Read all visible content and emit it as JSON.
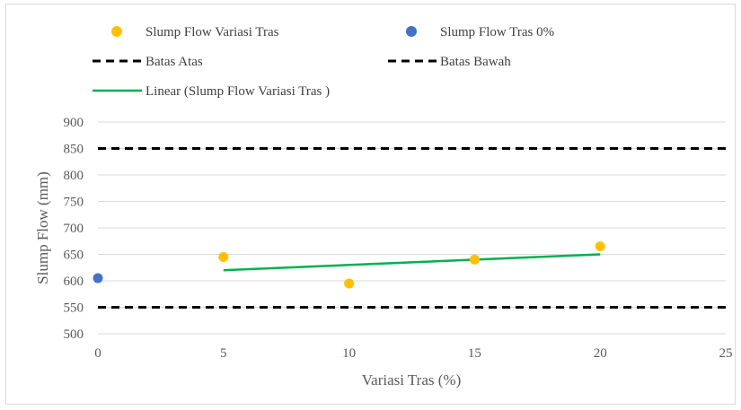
{
  "chart_data": {
    "type": "scatter",
    "title": "",
    "xlabel": "Variasi Tras (%)",
    "ylabel": "Slump Flow (mm)",
    "xlim": [
      0,
      25
    ],
    "ylim": [
      500,
      900
    ],
    "xticks": [
      0,
      5,
      10,
      15,
      20,
      25
    ],
    "yticks": [
      500,
      550,
      600,
      650,
      700,
      750,
      800,
      850,
      900
    ],
    "grid": "horizontal",
    "legend_position": "top",
    "series": [
      {
        "name": "Slump Flow Variasi Tras",
        "kind": "scatter",
        "color": "#ffc000",
        "x": [
          5,
          10,
          15,
          20
        ],
        "y": [
          645,
          595,
          640,
          665
        ]
      },
      {
        "name": "Slump Flow Tras 0%",
        "kind": "scatter",
        "color": "#4472c4",
        "x": [
          0
        ],
        "y": [
          605
        ]
      },
      {
        "name": "Batas Atas",
        "kind": "dashed-line",
        "color": "#000000",
        "x": [
          0,
          25
        ],
        "y": [
          850,
          850
        ]
      },
      {
        "name": "Batas Bawah",
        "kind": "dashed-line",
        "color": "#000000",
        "x": [
          0,
          25
        ],
        "y": [
          550,
          550
        ]
      },
      {
        "name": "Linear (Slump Flow Variasi Tras )",
        "kind": "trendline",
        "color": "#00b050",
        "x": [
          5,
          20
        ],
        "y": [
          620,
          650
        ]
      }
    ]
  }
}
